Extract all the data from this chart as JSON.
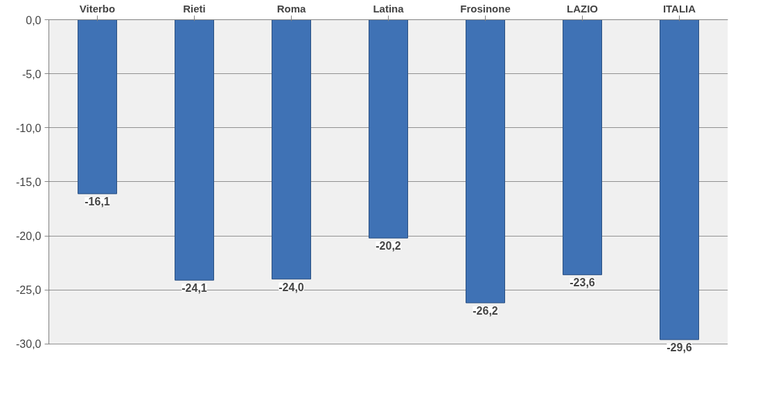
{
  "chart_data": {
    "type": "bar",
    "categories": [
      "Viterbo",
      "Rieti",
      "Roma",
      "Latina",
      "Frosinone",
      "LAZIO",
      "ITALIA"
    ],
    "values": [
      -16.1,
      -24.1,
      -24.0,
      -20.2,
      -26.2,
      -23.6,
      -29.6
    ],
    "value_labels": [
      "-16,1",
      "-24,1",
      "-24,0",
      "-20,2",
      "-26,2",
      "-23,6",
      "-29,6"
    ],
    "color": "#3f72b5",
    "ylim": [
      -30,
      0
    ],
    "yticks": [
      {
        "value": 0,
        "label": "0,0"
      },
      {
        "value": -5,
        "label": "-5,0"
      },
      {
        "value": -10,
        "label": "-10,0"
      },
      {
        "value": -15,
        "label": "-15,0"
      },
      {
        "value": -20,
        "label": "-20,0"
      },
      {
        "value": -25,
        "label": "-25,0"
      },
      {
        "value": -30,
        "label": "-30,0"
      }
    ],
    "grid": "y"
  }
}
